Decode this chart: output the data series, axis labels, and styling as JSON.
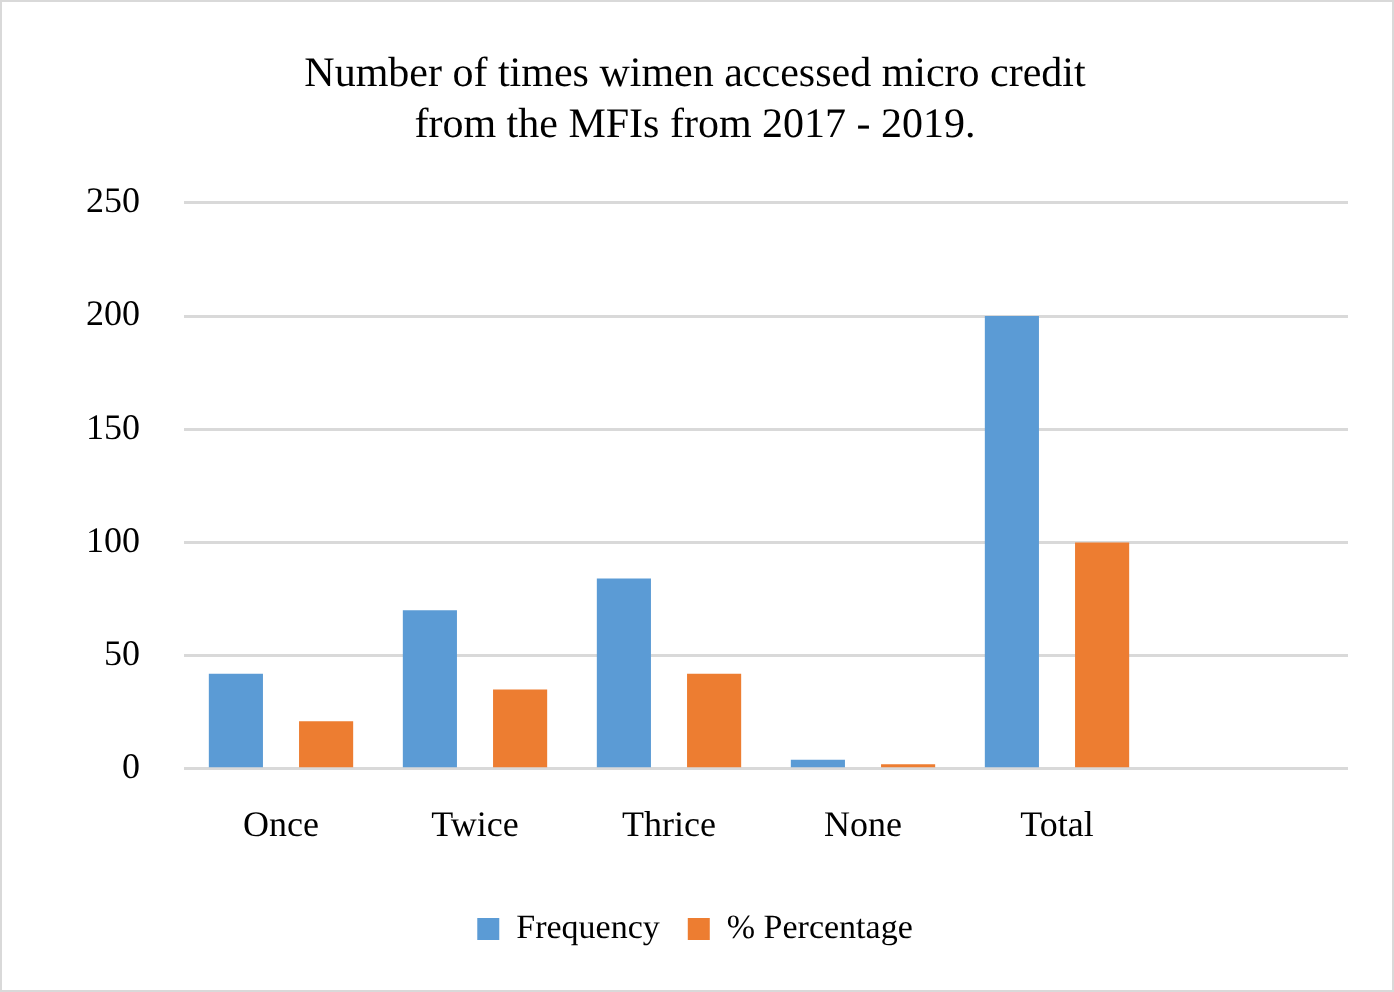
{
  "chart_data": {
    "type": "bar",
    "title": "Number of times wimen accessed micro credit\nfrom the MFIs from 2017 - 2019.",
    "categories": [
      "Once",
      "Twice",
      "Thrice",
      "None",
      "Total",
      null
    ],
    "series": [
      {
        "name": "Frequency",
        "color": "#5b9bd5",
        "values": [
          42,
          70,
          84,
          4,
          200,
          null
        ]
      },
      {
        "name": "% Percentage",
        "color": "#ed7d31",
        "values": [
          21,
          35,
          42,
          2,
          100,
          null
        ]
      }
    ],
    "ylim": [
      0,
      250
    ],
    "yticks": [
      0,
      50,
      100,
      150,
      200,
      250
    ],
    "grid": "y",
    "legend": "bottom"
  }
}
